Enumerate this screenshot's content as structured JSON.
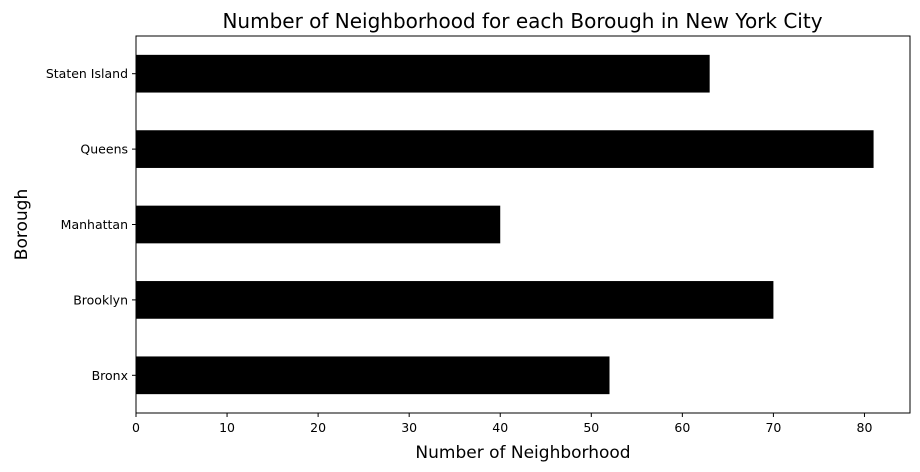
{
  "chart_data": {
    "type": "bar",
    "orientation": "horizontal",
    "title": "Number of Neighborhood for each Borough in New York City",
    "xlabel": "Number of Neighborhood",
    "ylabel": "Borough",
    "categories": [
      "Bronx",
      "Brooklyn",
      "Manhattan",
      "Queens",
      "Staten Island"
    ],
    "values": [
      52,
      70,
      40,
      81,
      63
    ],
    "xlim": [
      0,
      85
    ],
    "xticks": [
      0,
      10,
      20,
      30,
      40,
      50,
      60,
      70,
      80
    ],
    "grid": false,
    "legend": "none",
    "bar_color": "#000000"
  }
}
